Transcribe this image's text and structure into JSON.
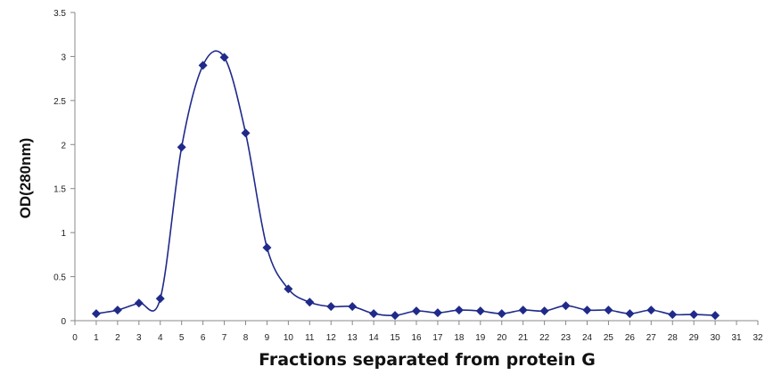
{
  "chart_data": {
    "type": "line",
    "title": "",
    "xlabel": "Fractions separated from protein G",
    "ylabel": "OD(280nm)",
    "xlim": [
      0,
      32
    ],
    "ylim": [
      0,
      3.5
    ],
    "x_ticks": [
      0,
      1,
      2,
      3,
      4,
      5,
      6,
      7,
      8,
      9,
      10,
      11,
      12,
      13,
      14,
      15,
      16,
      17,
      18,
      19,
      20,
      21,
      22,
      23,
      24,
      25,
      26,
      27,
      28,
      29,
      30,
      31,
      32
    ],
    "y_ticks": [
      0,
      0.5,
      1,
      1.5,
      2,
      2.5,
      3,
      3.5
    ],
    "y_tick_labels": [
      "0",
      "0.5",
      "1",
      "1.5",
      "2",
      "2.5",
      "3",
      "3.5"
    ],
    "grid": false,
    "legend": "none",
    "series": [
      {
        "color": "#1f2a8a",
        "marker": "diamond",
        "smooth": true,
        "x": [
          1,
          2,
          3,
          4,
          5,
          6,
          7,
          8,
          9,
          10,
          11,
          12,
          13,
          14,
          15,
          16,
          17,
          18,
          19,
          20,
          21,
          22,
          23,
          24,
          25,
          26,
          27,
          28,
          29,
          30
        ],
        "y": [
          0.08,
          0.12,
          0.2,
          0.25,
          1.97,
          2.9,
          2.99,
          2.13,
          0.83,
          0.36,
          0.21,
          0.16,
          0.16,
          0.08,
          0.06,
          0.11,
          0.09,
          0.12,
          0.11,
          0.08,
          0.12,
          0.11,
          0.17,
          0.12,
          0.12,
          0.08,
          0.12,
          0.07,
          0.07,
          0.06
        ]
      }
    ]
  }
}
